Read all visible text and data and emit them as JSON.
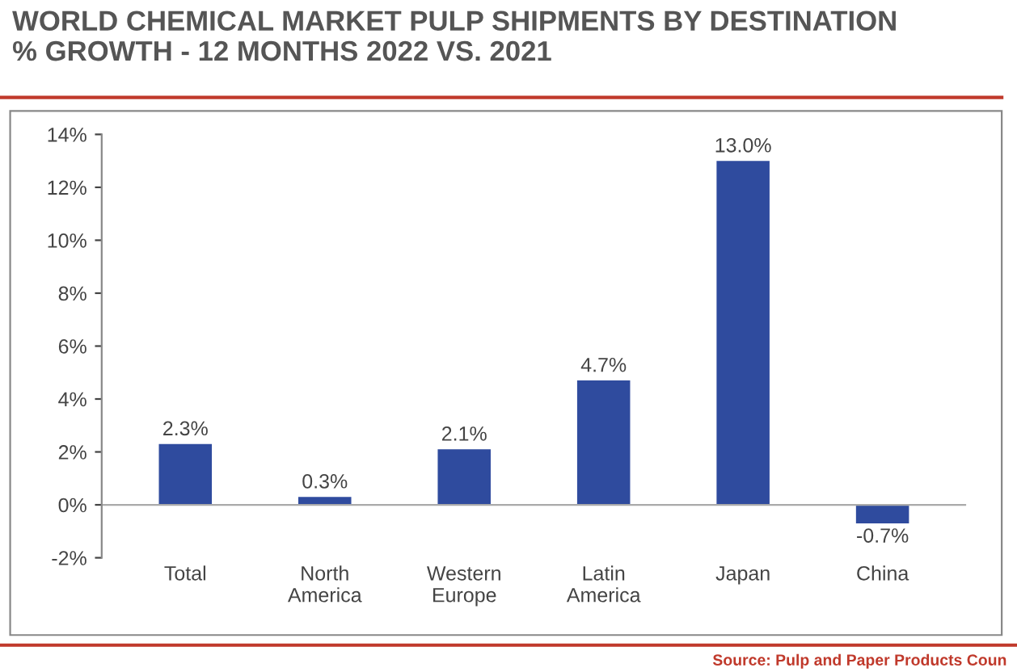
{
  "chart_data": {
    "type": "bar",
    "title": "WORLD CHEMICAL MARKET PULP SHIPMENTS BY DESTINATION\n% GROWTH - 12 MONTHS 2022 VS. 2021",
    "categories": [
      "Total",
      "North\nAmerica",
      "Western\nEurope",
      "Latin\nAmerica",
      "Japan",
      "China"
    ],
    "values": [
      2.3,
      0.3,
      2.1,
      4.7,
      13.0,
      -0.7
    ],
    "value_labels": [
      "2.3%",
      "0.3%",
      "2.1%",
      "4.7%",
      "13.0%",
      "-0.7%"
    ],
    "color": "#2f4b9e",
    "ylim": [
      -2,
      14
    ],
    "yticks": [
      {
        "value": -2,
        "label": "-2%"
      },
      {
        "value": 0,
        "label": "0%"
      },
      {
        "value": 2,
        "label": "2%"
      },
      {
        "value": 4,
        "label": "4%"
      },
      {
        "value": 6,
        "label": "6%"
      },
      {
        "value": 8,
        "label": "8%"
      },
      {
        "value": 10,
        "label": "10%"
      },
      {
        "value": 12,
        "label": "12%"
      },
      {
        "value": 14,
        "label": "14%"
      }
    ],
    "grid": false,
    "ref_lines": [
      {
        "axis": "y",
        "value": 0,
        "color": "#aaaaaa"
      }
    ],
    "annotations": [
      "Source: Pulp and Paper Products Coun"
    ]
  }
}
